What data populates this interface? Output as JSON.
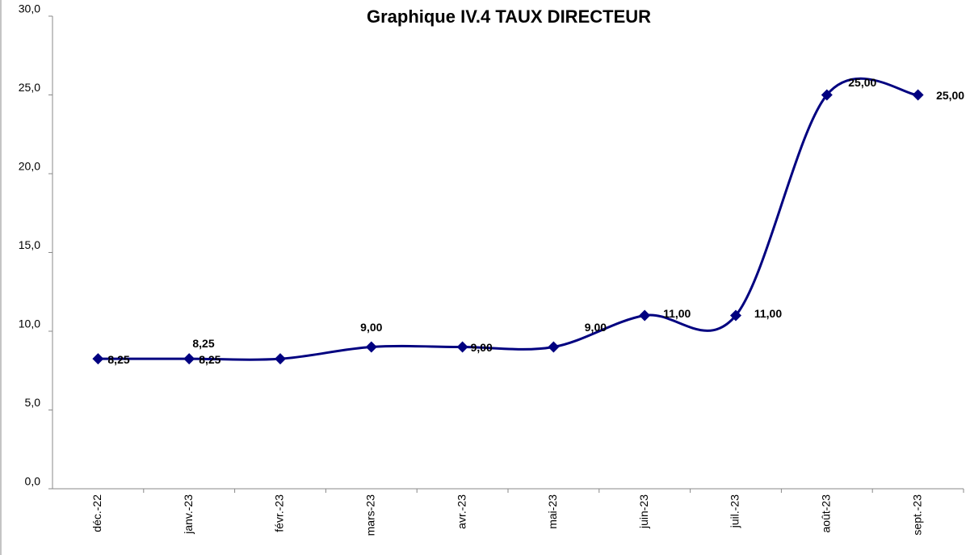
{
  "chart_data": {
    "type": "line",
    "title": "Graphique IV.4 TAUX DIRECTEUR",
    "categories": [
      "déc.-22",
      "janv.-23",
      "févr.-23",
      "mars-23",
      "avr.-23",
      "mai-23",
      "juin-23",
      "juil.-23",
      "août-23",
      "sept.-23"
    ],
    "series": [
      {
        "color": "#000080",
        "values": [
          8.25,
          8.25,
          8.25,
          9.0,
          9.0,
          9.0,
          11.0,
          11.0,
          25.0,
          25.0
        ],
        "value_labels": [
          "8,25",
          "8,25",
          "8,25",
          "9,00",
          "9,00",
          "9,00",
          "11,00",
          "11,00",
          "25,00",
          "25,00"
        ]
      }
    ],
    "ylim": [
      0,
      30
    ],
    "yticks": [
      {
        "value": 0,
        "label": "0,0"
      },
      {
        "value": 5,
        "label": "5,0"
      },
      {
        "value": 10,
        "label": "10,0"
      },
      {
        "value": 15,
        "label": "15,0"
      },
      {
        "value": 20,
        "label": "20,0"
      },
      {
        "value": 25,
        "label": "25,0"
      },
      {
        "value": 30,
        "label": "30,0"
      }
    ],
    "grid": false,
    "smooth": true
  }
}
